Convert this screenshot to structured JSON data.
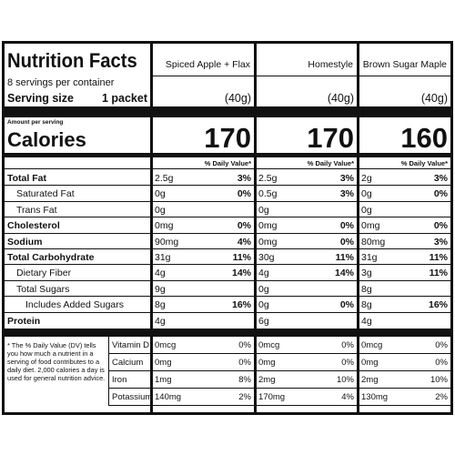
{
  "header": {
    "title": "Nutrition Facts",
    "servings": "8 servings per container",
    "serving_size_label": "Serving size",
    "serving_size_value": "1 packet",
    "amount_per_serving": "Amount per serving",
    "calories_label": "Calories",
    "dv_header": "% Daily Value*"
  },
  "products": [
    {
      "name": "Spiced Apple + Flax",
      "serving": "(40g)",
      "calories": 170
    },
    {
      "name": "Homestyle",
      "serving": "(40g)",
      "calories": 170
    },
    {
      "name": "Brown Sugar Maple",
      "serving": "(40g)",
      "calories": 160
    }
  ],
  "nutrients": [
    {
      "label": "Total Fat",
      "values": [
        {
          "amount": "2.5g",
          "dv": "3%"
        },
        {
          "amount": "2.5g",
          "dv": "3%"
        },
        {
          "amount": "2g",
          "dv": "3%"
        }
      ]
    },
    {
      "label": "Saturated Fat",
      "values": [
        {
          "amount": "0g",
          "dv": "0%"
        },
        {
          "amount": "0.5g",
          "dv": "3%"
        },
        {
          "amount": "0g",
          "dv": "0%"
        }
      ]
    },
    {
      "label": "Trans Fat",
      "values": [
        {
          "amount": "0g"
        },
        {
          "amount": "0g"
        },
        {
          "amount": "0g"
        }
      ]
    },
    {
      "label": "Cholesterol",
      "values": [
        {
          "amount": "0mg",
          "dv": "0%"
        },
        {
          "amount": "0mg",
          "dv": "0%"
        },
        {
          "amount": "0mg",
          "dv": "0%"
        }
      ]
    },
    {
      "label": "Sodium",
      "values": [
        {
          "amount": "90mg",
          "dv": "4%"
        },
        {
          "amount": "0mg",
          "dv": "0%"
        },
        {
          "amount": "80mg",
          "dv": "3%"
        }
      ]
    },
    {
      "label": "Total Carbohydrate",
      "values": [
        {
          "amount": "31g",
          "dv": "11%"
        },
        {
          "amount": "30g",
          "dv": "11%"
        },
        {
          "amount": "31g",
          "dv": "11%"
        }
      ]
    },
    {
      "label": "Dietary Fiber",
      "values": [
        {
          "amount": "4g",
          "dv": "14%"
        },
        {
          "amount": "4g",
          "dv": "14%"
        },
        {
          "amount": "3g",
          "dv": "11%"
        }
      ]
    },
    {
      "label": "Total Sugars",
      "values": [
        {
          "amount": "9g"
        },
        {
          "amount": "0g"
        },
        {
          "amount": "8g"
        }
      ]
    },
    {
      "label": "Includes Added Sugars",
      "values": [
        {
          "amount": "8g",
          "dv": "16%"
        },
        {
          "amount": "0g",
          "dv": "0%"
        },
        {
          "amount": "8g",
          "dv": "16%"
        }
      ]
    },
    {
      "label": "Protein",
      "values": [
        {
          "amount": "4g"
        },
        {
          "amount": "6g"
        },
        {
          "amount": "4g"
        }
      ]
    }
  ],
  "vitamins": [
    {
      "label": "Vitamin D",
      "values": [
        {
          "amount": "0mcg",
          "dv": "0%"
        },
        {
          "amount": "0mcg",
          "dv": "0%"
        },
        {
          "amount": "0mcg",
          "dv": "0%"
        }
      ]
    },
    {
      "label": "Calcium",
      "values": [
        {
          "amount": "0mg",
          "dv": "0%"
        },
        {
          "amount": "0mg",
          "dv": "0%"
        },
        {
          "amount": "0mg",
          "dv": "0%"
        }
      ]
    },
    {
      "label": "Iron",
      "values": [
        {
          "amount": "1mg",
          "dv": "8%"
        },
        {
          "amount": "2mg",
          "dv": "10%"
        },
        {
          "amount": "2mg",
          "dv": "10%"
        }
      ]
    },
    {
      "label": "Potassium",
      "values": [
        {
          "amount": "140mg",
          "dv": "2%"
        },
        {
          "amount": "170mg",
          "dv": "4%"
        },
        {
          "amount": "130mg",
          "dv": "2%"
        }
      ]
    }
  ],
  "footnote": "* The % Daily Value (DV) tells you how much a nutrient in a serving of food contributes to a daily diet. 2,000 calories a day is used for general nutrition advice."
}
